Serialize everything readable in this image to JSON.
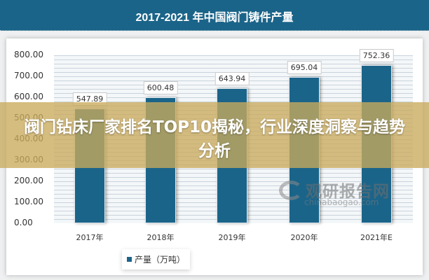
{
  "banner": {
    "title": "2017-2021 年中国阀门铸件产量"
  },
  "overlay": {
    "headline": "阀门钻床厂家排名TOP10揭秘，行业深度洞察与趋势分析"
  },
  "watermark": {
    "cn": "观研报告网",
    "en": "chinabaogao.com"
  },
  "legend": {
    "label": "产量（万吨）"
  },
  "colors": {
    "banner": "#1b6489",
    "bar": "#1b6489",
    "overlay": "#c9ab5c"
  },
  "chart_data": {
    "type": "bar",
    "title": "2017-2021 年中国阀门铸件产量",
    "categories": [
      "2017年",
      "2018年",
      "2019年",
      "2020年",
      "2021年E"
    ],
    "series": [
      {
        "name": "产量（万吨）",
        "values": [
          547.89,
          600.48,
          643.94,
          695.04,
          752.36
        ]
      }
    ],
    "value_labels": [
      "547.89",
      "600.48",
      "643.94",
      "695.04",
      "752.36"
    ],
    "xlabel": "",
    "ylabel": "",
    "ylim": [
      0,
      800
    ],
    "yticks": [
      "800.00",
      "700.00",
      "600.00",
      "500.00",
      "400.00",
      "300.00",
      "200.00",
      "100.00",
      "0.00"
    ],
    "grid": true,
    "legend_position": "bottom"
  }
}
